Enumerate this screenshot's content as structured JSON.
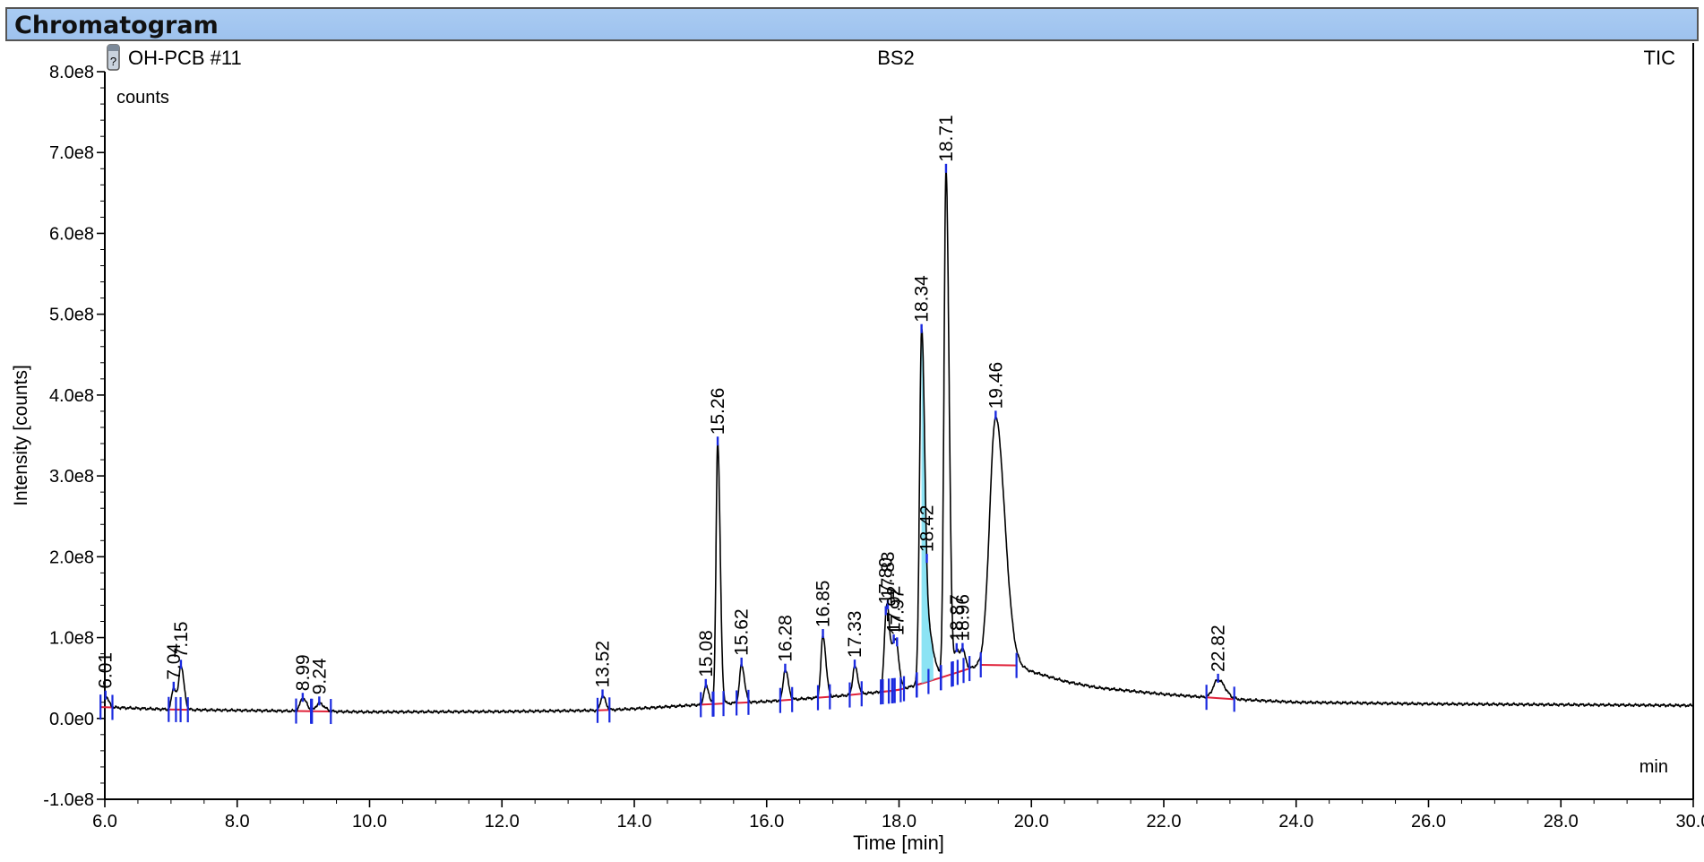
{
  "window": {
    "title": "Chromatogram"
  },
  "header": {
    "sample": "OH-PCB #11",
    "sample_icon": "vial-icon",
    "center": "BS2",
    "right": "TIC"
  },
  "colors": {
    "trace": "#000000",
    "marker": "#1a2adf",
    "baseline": "#e0223a",
    "fill": "#66d9f0",
    "titlebar": "#a5c9f1"
  },
  "chart_data": {
    "type": "line",
    "xlabel": "Time [min]",
    "ylabel": "Intensity [counts]",
    "x_unit": "min",
    "y_unit": "counts",
    "xlim": [
      6,
      30
    ],
    "ylim": [
      -100000000,
      800000000
    ],
    "x_ticks": [
      "6.0",
      "8.0",
      "10.0",
      "12.0",
      "14.0",
      "16.0",
      "18.0",
      "20.0",
      "22.0",
      "24.0",
      "26.0",
      "28.0",
      "30.0"
    ],
    "y_ticks": [
      "-1.0e8",
      "0.0e0",
      "1.0e8",
      "2.0e8",
      "3.0e8",
      "4.0e8",
      "5.0e8",
      "6.0e8",
      "7.0e8",
      "8.0e8"
    ],
    "grid": false,
    "baseline_points": [
      [
        6.0,
        14000000.0
      ],
      [
        7.0,
        11000000.0
      ],
      [
        8.0,
        10000000.0
      ],
      [
        10.0,
        8000000.0
      ],
      [
        12.0,
        8500000.0
      ],
      [
        13.5,
        10000000.0
      ],
      [
        14.0,
        12000000.0
      ],
      [
        15.0,
        17000000.0
      ],
      [
        16.0,
        21000000.0
      ],
      [
        17.0,
        27000000.0
      ],
      [
        18.0,
        35000000.0
      ],
      [
        18.5,
        47000000.0
      ],
      [
        19.0,
        60000000.0
      ],
      [
        19.3,
        68000000.0
      ],
      [
        19.7,
        68000000.0
      ],
      [
        20.0,
        58000000.0
      ],
      [
        20.5,
        46000000.0
      ],
      [
        21.0,
        38000000.0
      ],
      [
        22.0,
        30000000.0
      ],
      [
        23.0,
        24000000.0
      ],
      [
        24.0,
        20000000.0
      ],
      [
        26.0,
        18000000.0
      ],
      [
        28.0,
        17000000.0
      ],
      [
        30.0,
        16000000.0
      ]
    ],
    "peaks": [
      {
        "label": "6.01",
        "rt": 6.01,
        "height": 14000000.0,
        "width": 0.03
      },
      {
        "label": "7.04",
        "rt": 7.04,
        "height": 27000000.0,
        "width": 0.03
      },
      {
        "label": "7.15",
        "rt": 7.15,
        "height": 54000000.0,
        "width": 0.03
      },
      {
        "label": "8.99",
        "rt": 8.99,
        "height": 16000000.0,
        "width": 0.04
      },
      {
        "label": "9.24",
        "rt": 9.24,
        "height": 10000000.0,
        "width": 0.05
      },
      {
        "label": "13.52",
        "rt": 13.52,
        "height": 18000000.0,
        "width": 0.03
      },
      {
        "label": "15.08",
        "rt": 15.08,
        "height": 23000000.0,
        "width": 0.03
      },
      {
        "label": "15.26",
        "rt": 15.26,
        "height": 323000000.0,
        "width": 0.025
      },
      {
        "label": "15.62",
        "rt": 15.62,
        "height": 47000000.0,
        "width": 0.03
      },
      {
        "label": "16.28",
        "rt": 16.28,
        "height": 38000000.0,
        "width": 0.03
      },
      {
        "label": "16.85",
        "rt": 16.85,
        "height": 76000000.0,
        "width": 0.03
      },
      {
        "label": "17.33",
        "rt": 17.33,
        "height": 35000000.0,
        "width": 0.03
      },
      {
        "label": "17.80",
        "rt": 17.8,
        "height": 66000000.0,
        "width": 0.03
      },
      {
        "label": "17.83",
        "rt": 17.83,
        "height": 52000000.0,
        "width": 0.03
      },
      {
        "label": "17.92",
        "rt": 17.92,
        "height": 45000000.0,
        "width": 0.03
      },
      {
        "label": "17.97",
        "rt": 17.97,
        "height": 32000000.0,
        "width": 0.03
      },
      {
        "label": "18.34",
        "rt": 18.34,
        "height": 410000000.0,
        "width": 0.03
      },
      {
        "label": "18.42",
        "rt": 18.42,
        "height": 67000000.0,
        "width": 0.06
      },
      {
        "label": "18.71",
        "rt": 18.71,
        "height": 625000000.0,
        "width": 0.03
      },
      {
        "label": "18.87",
        "rt": 18.87,
        "height": 27000000.0,
        "width": 0.03
      },
      {
        "label": "18.96",
        "rt": 18.96,
        "height": 24000000.0,
        "width": 0.03
      },
      {
        "label": "19.46",
        "rt": 19.46,
        "height": 305000000.0,
        "width": 0.09
      },
      {
        "label": "22.82",
        "rt": 22.82,
        "height": 23000000.0,
        "width": 0.07
      }
    ]
  }
}
